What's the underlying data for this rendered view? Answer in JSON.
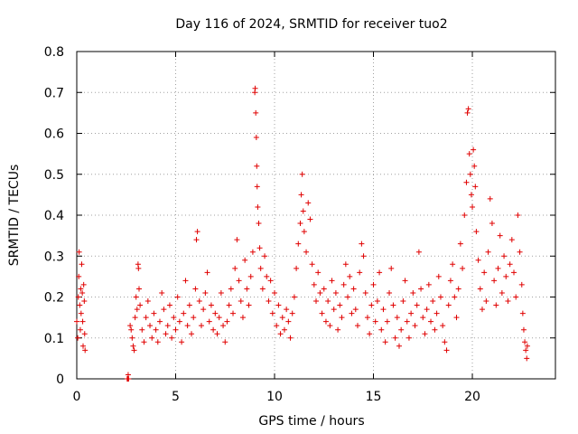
{
  "chart_data": {
    "type": "scatter",
    "title": "Day 116 of 2024, SRMTID for receiver tuo2",
    "xlabel": "GPS time / hours",
    "ylabel": "SRMTID / TECUs",
    "xlim": [
      0,
      24.2
    ],
    "ylim": [
      0,
      0.8
    ],
    "grid": true,
    "xticks": [
      0,
      5,
      10,
      15,
      20
    ],
    "xtick_labels": [
      "0",
      "5",
      "10",
      "15",
      "20"
    ],
    "yticks": [
      0,
      0.1,
      0.2,
      0.3,
      0.4,
      0.5,
      0.6,
      0.7,
      0.8
    ],
    "ytick_labels": [
      "0",
      "0.1",
      "0.2",
      "0.3",
      "0.4",
      "0.5",
      "0.6",
      "0.7",
      "0.8"
    ],
    "marker": "plus",
    "color": "#e00000",
    "points": [
      [
        0.0,
        0.14
      ],
      [
        0.05,
        0.1
      ],
      [
        0.08,
        0.2
      ],
      [
        0.1,
        0.25
      ],
      [
        0.12,
        0.31
      ],
      [
        0.15,
        0.18
      ],
      [
        0.18,
        0.12
      ],
      [
        0.2,
        0.22
      ],
      [
        0.22,
        0.16
      ],
      [
        0.25,
        0.28
      ],
      [
        0.28,
        0.21
      ],
      [
        0.3,
        0.14
      ],
      [
        0.32,
        0.08
      ],
      [
        0.35,
        0.23
      ],
      [
        0.38,
        0.19
      ],
      [
        0.4,
        0.11
      ],
      [
        0.42,
        0.07
      ],
      [
        2.55,
        0.0
      ],
      [
        2.58,
        0.0
      ],
      [
        2.6,
        0.01
      ],
      [
        2.62,
        0.0
      ],
      [
        2.7,
        0.13
      ],
      [
        2.75,
        0.12
      ],
      [
        2.8,
        0.1
      ],
      [
        2.85,
        0.08
      ],
      [
        2.9,
        0.07
      ],
      [
        2.95,
        0.15
      ],
      [
        3.0,
        0.2
      ],
      [
        3.05,
        0.17
      ],
      [
        3.1,
        0.28
      ],
      [
        3.12,
        0.27
      ],
      [
        3.15,
        0.22
      ],
      [
        3.2,
        0.18
      ],
      [
        3.3,
        0.12
      ],
      [
        3.4,
        0.09
      ],
      [
        3.5,
        0.15
      ],
      [
        3.6,
        0.19
      ],
      [
        3.7,
        0.13
      ],
      [
        3.8,
        0.1
      ],
      [
        3.9,
        0.16
      ],
      [
        4.0,
        0.12
      ],
      [
        4.1,
        0.09
      ],
      [
        4.2,
        0.14
      ],
      [
        4.3,
        0.21
      ],
      [
        4.4,
        0.17
      ],
      [
        4.5,
        0.11
      ],
      [
        4.6,
        0.13
      ],
      [
        4.7,
        0.18
      ],
      [
        4.8,
        0.1
      ],
      [
        4.9,
        0.15
      ],
      [
        5.0,
        0.12
      ],
      [
        5.1,
        0.2
      ],
      [
        5.2,
        0.14
      ],
      [
        5.3,
        0.09
      ],
      [
        5.4,
        0.16
      ],
      [
        5.5,
        0.24
      ],
      [
        5.6,
        0.13
      ],
      [
        5.7,
        0.18
      ],
      [
        5.8,
        0.11
      ],
      [
        5.9,
        0.15
      ],
      [
        6.0,
        0.22
      ],
      [
        6.05,
        0.34
      ],
      [
        6.1,
        0.36
      ],
      [
        6.2,
        0.19
      ],
      [
        6.3,
        0.13
      ],
      [
        6.4,
        0.17
      ],
      [
        6.5,
        0.21
      ],
      [
        6.6,
        0.26
      ],
      [
        6.7,
        0.14
      ],
      [
        6.8,
        0.18
      ],
      [
        6.9,
        0.12
      ],
      [
        7.0,
        0.16
      ],
      [
        7.1,
        0.11
      ],
      [
        7.2,
        0.15
      ],
      [
        7.3,
        0.21
      ],
      [
        7.4,
        0.13
      ],
      [
        7.5,
        0.09
      ],
      [
        7.6,
        0.14
      ],
      [
        7.7,
        0.18
      ],
      [
        7.8,
        0.22
      ],
      [
        7.9,
        0.16
      ],
      [
        8.0,
        0.27
      ],
      [
        8.1,
        0.34
      ],
      [
        8.2,
        0.24
      ],
      [
        8.3,
        0.19
      ],
      [
        8.4,
        0.15
      ],
      [
        8.5,
        0.29
      ],
      [
        8.6,
        0.22
      ],
      [
        8.7,
        0.18
      ],
      [
        8.8,
        0.25
      ],
      [
        8.9,
        0.31
      ],
      [
        9.0,
        0.7
      ],
      [
        9.02,
        0.71
      ],
      [
        9.05,
        0.65
      ],
      [
        9.08,
        0.59
      ],
      [
        9.1,
        0.52
      ],
      [
        9.12,
        0.47
      ],
      [
        9.15,
        0.42
      ],
      [
        9.2,
        0.38
      ],
      [
        9.25,
        0.32
      ],
      [
        9.3,
        0.27
      ],
      [
        9.4,
        0.22
      ],
      [
        9.5,
        0.3
      ],
      [
        9.6,
        0.25
      ],
      [
        9.7,
        0.19
      ],
      [
        9.8,
        0.24
      ],
      [
        9.9,
        0.16
      ],
      [
        10.0,
        0.21
      ],
      [
        10.1,
        0.13
      ],
      [
        10.2,
        0.18
      ],
      [
        10.3,
        0.11
      ],
      [
        10.4,
        0.15
      ],
      [
        10.5,
        0.12
      ],
      [
        10.6,
        0.17
      ],
      [
        10.7,
        0.14
      ],
      [
        10.8,
        0.1
      ],
      [
        10.9,
        0.16
      ],
      [
        11.0,
        0.2
      ],
      [
        11.1,
        0.27
      ],
      [
        11.2,
        0.33
      ],
      [
        11.3,
        0.38
      ],
      [
        11.35,
        0.45
      ],
      [
        11.4,
        0.5
      ],
      [
        11.45,
        0.41
      ],
      [
        11.5,
        0.36
      ],
      [
        11.6,
        0.31
      ],
      [
        11.7,
        0.43
      ],
      [
        11.8,
        0.39
      ],
      [
        11.9,
        0.28
      ],
      [
        12.0,
        0.23
      ],
      [
        12.1,
        0.19
      ],
      [
        12.2,
        0.26
      ],
      [
        12.3,
        0.21
      ],
      [
        12.4,
        0.16
      ],
      [
        12.5,
        0.22
      ],
      [
        12.6,
        0.14
      ],
      [
        12.7,
        0.19
      ],
      [
        12.8,
        0.13
      ],
      [
        12.9,
        0.24
      ],
      [
        13.0,
        0.17
      ],
      [
        13.1,
        0.21
      ],
      [
        13.2,
        0.12
      ],
      [
        13.3,
        0.18
      ],
      [
        13.4,
        0.15
      ],
      [
        13.5,
        0.23
      ],
      [
        13.6,
        0.28
      ],
      [
        13.7,
        0.2
      ],
      [
        13.8,
        0.25
      ],
      [
        13.9,
        0.16
      ],
      [
        14.0,
        0.22
      ],
      [
        14.1,
        0.17
      ],
      [
        14.2,
        0.13
      ],
      [
        14.3,
        0.26
      ],
      [
        14.4,
        0.33
      ],
      [
        14.5,
        0.3
      ],
      [
        14.6,
        0.21
      ],
      [
        14.7,
        0.15
      ],
      [
        14.8,
        0.11
      ],
      [
        14.9,
        0.18
      ],
      [
        15.0,
        0.23
      ],
      [
        15.1,
        0.14
      ],
      [
        15.2,
        0.19
      ],
      [
        15.3,
        0.26
      ],
      [
        15.4,
        0.12
      ],
      [
        15.5,
        0.17
      ],
      [
        15.6,
        0.09
      ],
      [
        15.7,
        0.14
      ],
      [
        15.8,
        0.21
      ],
      [
        15.9,
        0.27
      ],
      [
        16.0,
        0.18
      ],
      [
        16.1,
        0.1
      ],
      [
        16.2,
        0.15
      ],
      [
        16.3,
        0.08
      ],
      [
        16.4,
        0.12
      ],
      [
        16.5,
        0.19
      ],
      [
        16.6,
        0.24
      ],
      [
        16.7,
        0.14
      ],
      [
        16.8,
        0.1
      ],
      [
        16.9,
        0.16
      ],
      [
        17.0,
        0.21
      ],
      [
        17.1,
        0.13
      ],
      [
        17.2,
        0.18
      ],
      [
        17.3,
        0.31
      ],
      [
        17.4,
        0.22
      ],
      [
        17.5,
        0.15
      ],
      [
        17.6,
        0.11
      ],
      [
        17.7,
        0.17
      ],
      [
        17.8,
        0.23
      ],
      [
        17.9,
        0.14
      ],
      [
        18.0,
        0.19
      ],
      [
        18.1,
        0.12
      ],
      [
        18.2,
        0.16
      ],
      [
        18.3,
        0.25
      ],
      [
        18.4,
        0.2
      ],
      [
        18.5,
        0.13
      ],
      [
        18.6,
        0.09
      ],
      [
        18.7,
        0.07
      ],
      [
        18.8,
        0.18
      ],
      [
        18.9,
        0.24
      ],
      [
        19.0,
        0.28
      ],
      [
        19.1,
        0.2
      ],
      [
        19.2,
        0.15
      ],
      [
        19.3,
        0.22
      ],
      [
        19.4,
        0.33
      ],
      [
        19.5,
        0.27
      ],
      [
        19.6,
        0.4
      ],
      [
        19.7,
        0.48
      ],
      [
        19.75,
        0.65
      ],
      [
        19.8,
        0.66
      ],
      [
        19.85,
        0.55
      ],
      [
        19.9,
        0.5
      ],
      [
        19.95,
        0.45
      ],
      [
        20.0,
        0.42
      ],
      [
        20.05,
        0.56
      ],
      [
        20.1,
        0.52
      ],
      [
        20.15,
        0.47
      ],
      [
        20.2,
        0.36
      ],
      [
        20.3,
        0.29
      ],
      [
        20.4,
        0.22
      ],
      [
        20.5,
        0.17
      ],
      [
        20.6,
        0.26
      ],
      [
        20.7,
        0.19
      ],
      [
        20.8,
        0.31
      ],
      [
        20.9,
        0.44
      ],
      [
        21.0,
        0.38
      ],
      [
        21.1,
        0.24
      ],
      [
        21.2,
        0.18
      ],
      [
        21.3,
        0.27
      ],
      [
        21.4,
        0.35
      ],
      [
        21.5,
        0.21
      ],
      [
        21.6,
        0.3
      ],
      [
        21.7,
        0.25
      ],
      [
        21.8,
        0.19
      ],
      [
        21.9,
        0.28
      ],
      [
        22.0,
        0.34
      ],
      [
        22.1,
        0.26
      ],
      [
        22.2,
        0.2
      ],
      [
        22.3,
        0.4
      ],
      [
        22.4,
        0.31
      ],
      [
        22.5,
        0.23
      ],
      [
        22.55,
        0.16
      ],
      [
        22.6,
        0.12
      ],
      [
        22.65,
        0.09
      ],
      [
        22.7,
        0.07
      ],
      [
        22.75,
        0.05
      ],
      [
        22.78,
        0.08
      ]
    ]
  }
}
